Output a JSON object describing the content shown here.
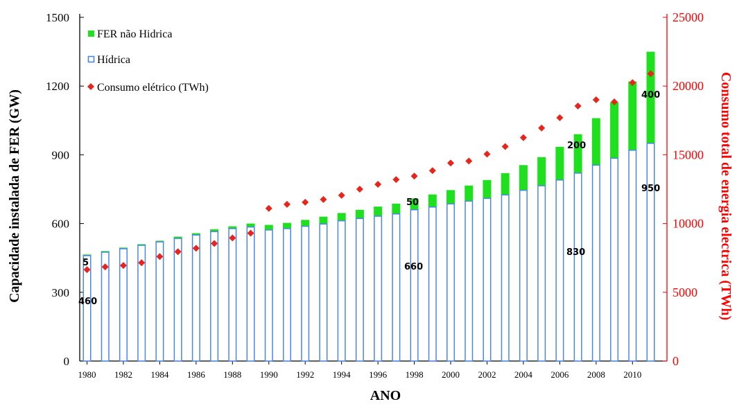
{
  "chart_data": {
    "type": "bar",
    "xlabel": "ANO",
    "ylabel": "Capacidade instalada de FER (GW)",
    "y2label": "Consumo total de energia electrica (TWh)",
    "ylim": [
      0,
      1500
    ],
    "y2lim": [
      0,
      25000
    ],
    "yticks": [
      "0",
      "300",
      "600",
      "900",
      "1200",
      "1500"
    ],
    "y2ticks": [
      "0",
      "5000",
      "10000",
      "15000",
      "20000",
      "25000"
    ],
    "x": [
      1980,
      1981,
      1982,
      1983,
      1984,
      1985,
      1986,
      1987,
      1988,
      1989,
      1990,
      1991,
      1992,
      1993,
      1994,
      1995,
      1996,
      1997,
      1998,
      1999,
      2000,
      2001,
      2002,
      2003,
      2004,
      2005,
      2006,
      2007,
      2008,
      2009,
      2010,
      2011
    ],
    "xticks": [
      "1980",
      "1982",
      "1984",
      "1986",
      "1988",
      "1990",
      "1992",
      "1994",
      "1996",
      "1998",
      "2000",
      "2002",
      "2004",
      "2006",
      "2008",
      "2010"
    ],
    "legend_position": "top-left",
    "series": [
      {
        "name": "Hídrica",
        "kind": "bar",
        "color": "#4a86e8",
        "values": [
          460,
          475,
          490,
          505,
          520,
          535,
          550,
          565,
          578,
          585,
          572,
          578,
          588,
          598,
          612,
          622,
          632,
          642,
          660,
          672,
          686,
          698,
          710,
          725,
          745,
          765,
          790,
          820,
          855,
          885,
          920,
          950
        ]
      },
      {
        "name": "FER não Hidrica",
        "kind": "bar-stacked",
        "color": "#1fe01f",
        "values": [
          5,
          5,
          5,
          5,
          5,
          8,
          8,
          10,
          10,
          15,
          22,
          25,
          28,
          32,
          34,
          38,
          42,
          45,
          50,
          55,
          60,
          68,
          80,
          95,
          110,
          125,
          145,
          170,
          205,
          245,
          300,
          400
        ]
      },
      {
        "name": "Consumo elétrico (TWh)",
        "kind": "scatter",
        "axis": "right",
        "color": "#e8251b",
        "values": [
          6650,
          6850,
          6950,
          7150,
          7600,
          7950,
          8200,
          8550,
          8950,
          9300,
          11100,
          11400,
          11550,
          11750,
          12050,
          12500,
          12850,
          13200,
          13450,
          13850,
          14400,
          14550,
          15050,
          15600,
          16250,
          16950,
          17700,
          18550,
          19000,
          18850,
          20250,
          20900
        ]
      }
    ],
    "annotations": [
      "460",
      "5",
      "660",
      "50",
      "830",
      "200",
      "950",
      "400"
    ]
  }
}
